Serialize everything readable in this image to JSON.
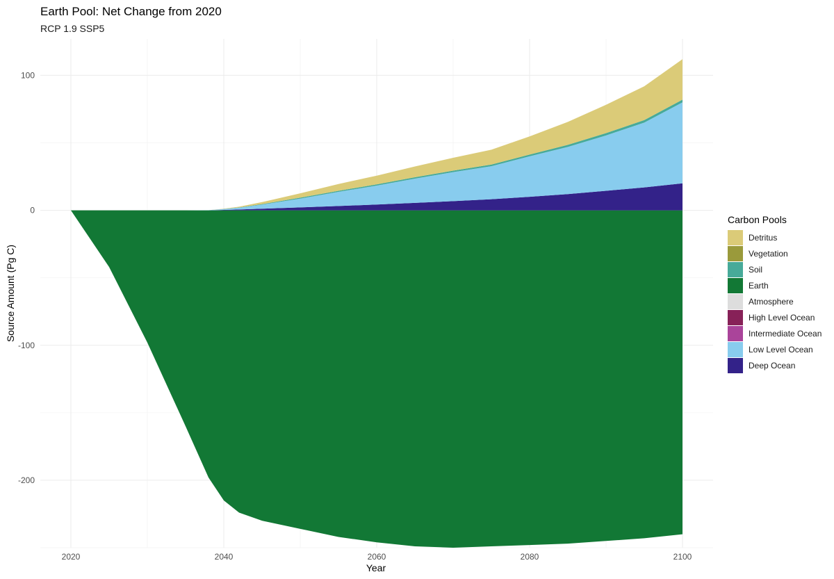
{
  "chart_data": {
    "type": "area",
    "title": "Earth Pool: Net Change from 2020",
    "subtitle": "RCP 1.9 SSP5",
    "xlabel": "Year",
    "ylabel": "Source Amount (Pg C)",
    "xlim": [
      2016,
      2104
    ],
    "ylim": [
      -250,
      127
    ],
    "x_ticks": [
      2020,
      2040,
      2060,
      2080,
      2100
    ],
    "y_ticks": [
      -200,
      -100,
      0,
      100
    ],
    "grid": true,
    "legend": {
      "title": "Carbon Pools",
      "position": "right",
      "entries": [
        {
          "name": "Detritus",
          "color": "#DBCB78"
        },
        {
          "name": "Vegetation",
          "color": "#9A9A3B"
        },
        {
          "name": "Soil",
          "color": "#47AA99"
        },
        {
          "name": "Earth",
          "color": "#127835"
        },
        {
          "name": "Atmosphere",
          "color": "#DDDDDD"
        },
        {
          "name": "High Level Ocean",
          "color": "#872158"
        },
        {
          "name": "Intermediate Ocean",
          "color": "#AA449A"
        },
        {
          "name": "Low Level Ocean",
          "color": "#88CCEE"
        },
        {
          "name": "Deep Ocean",
          "color": "#332289"
        }
      ]
    },
    "x": [
      2020,
      2025,
      2030,
      2035,
      2038,
      2040,
      2042,
      2045,
      2050,
      2055,
      2060,
      2065,
      2070,
      2075,
      2080,
      2085,
      2090,
      2095,
      2100
    ],
    "series": [
      {
        "name": "Earth",
        "color": "#127835",
        "values": [
          0,
          -42,
          -98,
          -160,
          -198,
          -215,
          -224,
          -230,
          -236,
          -242,
          -246,
          -249,
          -250,
          -249,
          -248,
          -247,
          -245,
          -243,
          -240
        ]
      },
      {
        "name": "Deep Ocean",
        "color": "#332289",
        "values": [
          0,
          0,
          0,
          0,
          0,
          0.3,
          0.6,
          1.2,
          2.2,
          3.2,
          4.3,
          5.5,
          6.8,
          8.2,
          10,
          12,
          14.5,
          17,
          20
        ]
      },
      {
        "name": "Low Level Ocean",
        "color": "#88CCEE",
        "values": [
          0,
          0,
          0,
          0,
          0.1,
          0.6,
          1.3,
          3,
          6.5,
          10.5,
          14,
          18,
          21.5,
          24.5,
          30,
          35,
          41,
          48,
          60
        ]
      },
      {
        "name": "Intermediate Ocean",
        "color": "#AA449A",
        "values": [
          0,
          0,
          0,
          0,
          0,
          0,
          0,
          0,
          0,
          0,
          0,
          0,
          0,
          0,
          0,
          0,
          0,
          0,
          0
        ]
      },
      {
        "name": "High Level Ocean",
        "color": "#872158",
        "values": [
          0,
          0,
          0,
          0,
          0,
          0,
          0,
          0,
          0,
          0,
          0,
          0,
          0,
          0,
          0,
          0,
          0,
          0,
          0
        ]
      },
      {
        "name": "Atmosphere",
        "color": "#DDDDDD",
        "values": [
          0,
          0,
          0,
          0,
          0,
          0,
          0,
          0,
          0,
          0,
          0,
          0,
          0,
          0,
          0,
          0,
          0,
          0,
          0
        ]
      },
      {
        "name": "Soil",
        "color": "#47AA99",
        "values": [
          0,
          0,
          0,
          0,
          0,
          0.1,
          0.2,
          0.4,
          0.7,
          0.8,
          0.9,
          1,
          1.1,
          1.2,
          1.3,
          1.5,
          1.7,
          1.9,
          2
        ]
      },
      {
        "name": "Vegetation",
        "color": "#9A9A3B",
        "values": [
          0,
          0,
          0,
          0,
          0,
          0,
          0,
          0,
          0,
          0,
          0,
          0,
          0,
          0,
          0,
          0,
          0,
          0,
          0
        ]
      },
      {
        "name": "Detritus",
        "color": "#DBCB78",
        "values": [
          0,
          0,
          0,
          0,
          0,
          0.2,
          0.6,
          1.5,
          3.2,
          5,
          6.5,
          8,
          9.5,
          11,
          13.5,
          17,
          21,
          25,
          30
        ]
      }
    ]
  }
}
